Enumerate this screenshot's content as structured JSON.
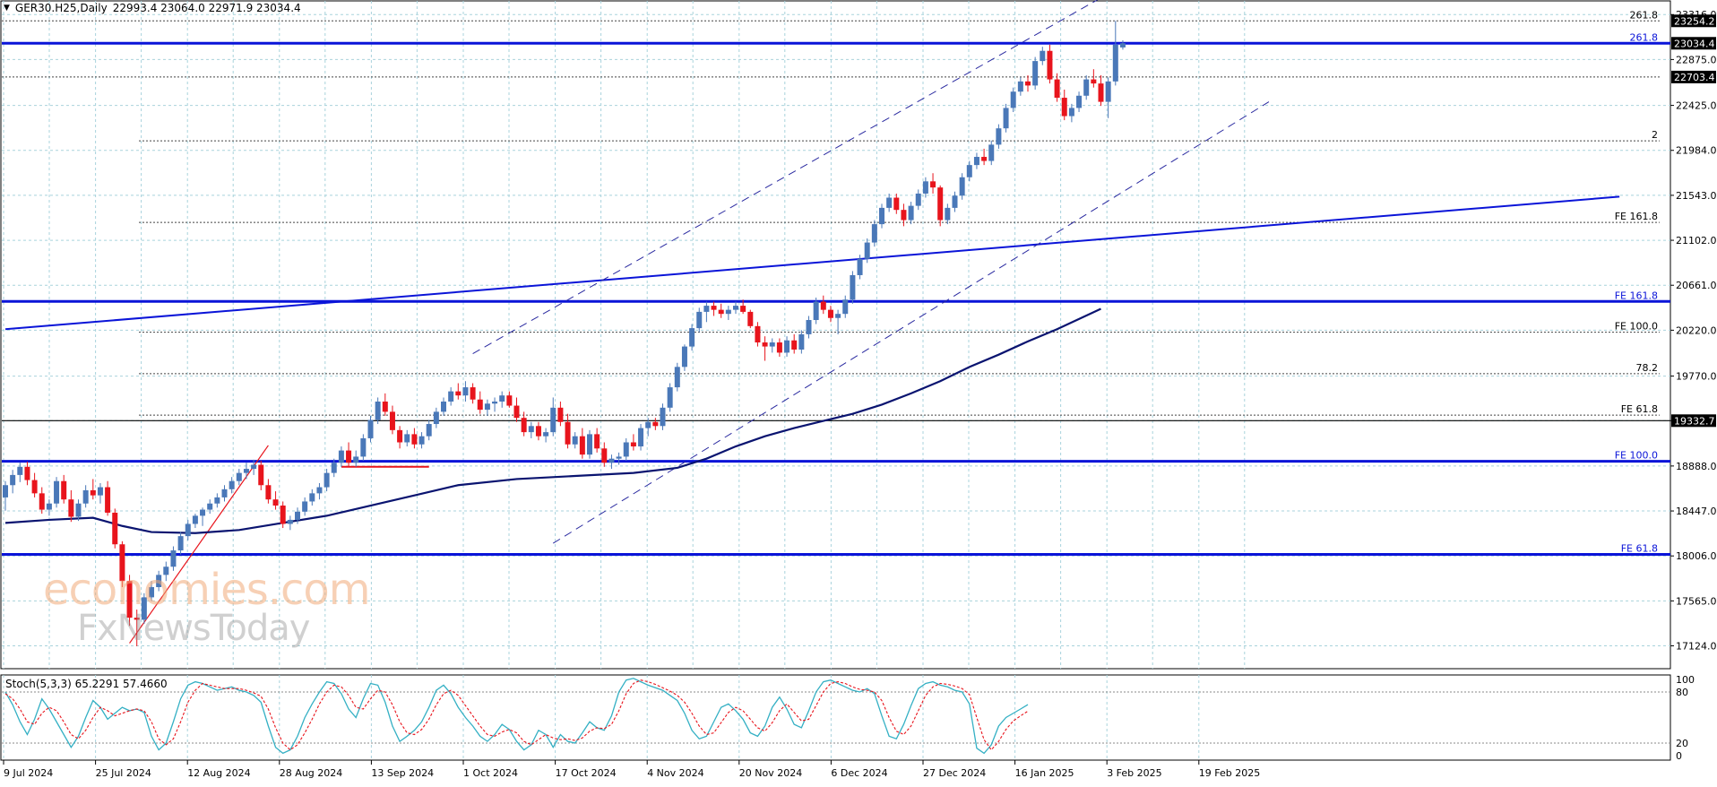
{
  "header": {
    "symbol": "GER30.H25,Daily",
    "ohlc": "22993.4 23064.0 22971.9 23034.4"
  },
  "stoch_label": "Stoch(5,3,3) 65.2291 57.4660",
  "watermark": {
    "line1": "economies.com",
    "line2": "FxNewsToday"
  },
  "colors": {
    "bull": "#4a78b8",
    "bear": "#e8141c",
    "level": "#0a14d8",
    "ma": "#0a1470",
    "stoch_main": "#34b0c4",
    "stoch_signal": "#e8141c"
  },
  "chart_data": {
    "type": "candlestick",
    "ylim": [
      16900,
      23450
    ],
    "price_ticks": [
      "23316.0",
      "22875.0",
      "22425.0",
      "21984.0",
      "21543.0",
      "21102.0",
      "20661.0",
      "20220.0",
      "19770.0",
      "19332.7",
      "18888.0",
      "18447.0",
      "18006.0",
      "17565.0",
      "17124.0"
    ],
    "x_labels": [
      "9 Jul 2024",
      "25 Jul 2024",
      "12 Aug 2024",
      "28 Aug 2024",
      "13 Sep 2024",
      "1 Oct 2024",
      "17 Oct 2024",
      "4 Nov 2024",
      "20 Nov 2024",
      "6 Dec 2024",
      "27 Dec 2024",
      "16 Jan 2025",
      "3 Feb 2025",
      "19 Feb 2025"
    ],
    "price_badges": [
      {
        "text": "23254.2",
        "price": 23254.2
      },
      {
        "text": "23034.4",
        "price": 23034.4
      },
      {
        "text": "22703.4",
        "price": 22703.4
      },
      {
        "text": "19332.7",
        "price": 19332.7
      }
    ],
    "levels": [
      {
        "label": "261.8",
        "price": 23254.2,
        "style": "dotted"
      },
      {
        "label": "261.8",
        "price": 23034.4,
        "style": "thick"
      },
      {
        "label": "",
        "price": 22703.4,
        "style": "dotted"
      },
      {
        "label": "2",
        "price": 22077,
        "style": "dotted"
      },
      {
        "label": "FE 161.8",
        "price": 21277,
        "style": "dotted"
      },
      {
        "label": "FE 161.8",
        "price": 20502,
        "style": "thick"
      },
      {
        "label": "FE 100.0",
        "price": 20200,
        "style": "dotted"
      },
      {
        "label": "78.2",
        "price": 19794,
        "style": "dotted"
      },
      {
        "label": "FE 61.8",
        "price": 19387,
        "style": "dotted"
      },
      {
        "label": "",
        "price": 19332.7,
        "style": "solid-black"
      },
      {
        "label": "FE 100.0",
        "price": 18934,
        "style": "thick"
      },
      {
        "label": "FE 61.8",
        "price": 18021,
        "style": "thick"
      }
    ],
    "candles": [
      [
        18580,
        18740,
        18450,
        18700
      ],
      [
        18700,
        18850,
        18620,
        18800
      ],
      [
        18800,
        18920,
        18730,
        18880
      ],
      [
        18880,
        18930,
        18700,
        18750
      ],
      [
        18750,
        18820,
        18580,
        18620
      ],
      [
        18620,
        18680,
        18420,
        18460
      ],
      [
        18460,
        18560,
        18400,
        18520
      ],
      [
        18520,
        18780,
        18480,
        18740
      ],
      [
        18740,
        18800,
        18520,
        18560
      ],
      [
        18560,
        18650,
        18340,
        18390
      ],
      [
        18390,
        18560,
        18350,
        18520
      ],
      [
        18520,
        18700,
        18480,
        18650
      ],
      [
        18650,
        18760,
        18560,
        18600
      ],
      [
        18600,
        18720,
        18520,
        18680
      ],
      [
        18680,
        18740,
        18400,
        18430
      ],
      [
        18430,
        18470,
        18080,
        18120
      ],
      [
        18120,
        18150,
        17700,
        17760
      ],
      [
        17760,
        17820,
        17320,
        17400
      ],
      [
        17400,
        17480,
        17120,
        17380
      ],
      [
        17380,
        17640,
        17340,
        17600
      ],
      [
        17600,
        17760,
        17560,
        17700
      ],
      [
        17700,
        17860,
        17660,
        17820
      ],
      [
        17820,
        17950,
        17760,
        17900
      ],
      [
        17900,
        18100,
        17860,
        18060
      ],
      [
        18060,
        18240,
        18020,
        18200
      ],
      [
        18200,
        18360,
        18160,
        18320
      ],
      [
        18320,
        18420,
        18280,
        18400
      ],
      [
        18400,
        18480,
        18300,
        18460
      ],
      [
        18460,
        18560,
        18420,
        18520
      ],
      [
        18520,
        18620,
        18480,
        18580
      ],
      [
        18580,
        18700,
        18540,
        18660
      ],
      [
        18660,
        18780,
        18620,
        18740
      ],
      [
        18740,
        18860,
        18700,
        18820
      ],
      [
        18820,
        18920,
        18760,
        18860
      ],
      [
        18860,
        18950,
        18800,
        18900
      ],
      [
        18900,
        18940,
        18650,
        18700
      ],
      [
        18700,
        18760,
        18520,
        18560
      ],
      [
        18560,
        18640,
        18460,
        18500
      ],
      [
        18500,
        18540,
        18280,
        18320
      ],
      [
        18320,
        18400,
        18260,
        18360
      ],
      [
        18360,
        18480,
        18320,
        18440
      ],
      [
        18440,
        18580,
        18400,
        18540
      ],
      [
        18540,
        18660,
        18500,
        18620
      ],
      [
        18620,
        18720,
        18560,
        18680
      ],
      [
        18680,
        18860,
        18640,
        18820
      ],
      [
        18820,
        18960,
        18780,
        18920
      ],
      [
        18920,
        19080,
        18880,
        19040
      ],
      [
        19040,
        19120,
        18880,
        18920
      ],
      [
        18920,
        19040,
        18880,
        18980
      ],
      [
        18980,
        19200,
        18940,
        19160
      ],
      [
        19160,
        19380,
        19120,
        19340
      ],
      [
        19340,
        19560,
        19300,
        19520
      ],
      [
        19520,
        19600,
        19380,
        19420
      ],
      [
        19420,
        19480,
        19200,
        19240
      ],
      [
        19240,
        19280,
        19060,
        19120
      ],
      [
        19120,
        19240,
        19080,
        19200
      ],
      [
        19200,
        19260,
        19060,
        19100
      ],
      [
        19100,
        19220,
        19060,
        19180
      ],
      [
        19180,
        19340,
        19140,
        19300
      ],
      [
        19300,
        19460,
        19260,
        19420
      ],
      [
        19420,
        19560,
        19380,
        19520
      ],
      [
        19520,
        19660,
        19480,
        19620
      ],
      [
        19620,
        19700,
        19540,
        19580
      ],
      [
        19580,
        19720,
        19520,
        19660
      ],
      [
        19660,
        19700,
        19500,
        19540
      ],
      [
        19540,
        19620,
        19400,
        19440
      ],
      [
        19440,
        19540,
        19380,
        19500
      ],
      [
        19500,
        19560,
        19420,
        19520
      ],
      [
        19520,
        19620,
        19460,
        19580
      ],
      [
        19580,
        19620,
        19460,
        19480
      ],
      [
        19480,
        19560,
        19320,
        19360
      ],
      [
        19360,
        19420,
        19180,
        19220
      ],
      [
        19220,
        19320,
        19160,
        19280
      ],
      [
        19280,
        19320,
        19140,
        19180
      ],
      [
        19180,
        19260,
        19120,
        19220
      ],
      [
        19220,
        19560,
        19180,
        19460
      ],
      [
        19460,
        19520,
        19280,
        19320
      ],
      [
        19320,
        19400,
        19060,
        19100
      ],
      [
        19100,
        19220,
        19060,
        19180
      ],
      [
        19180,
        19260,
        18960,
        19000
      ],
      [
        19000,
        19240,
        18960,
        19200
      ],
      [
        19200,
        19260,
        19020,
        19060
      ],
      [
        19060,
        19120,
        18880,
        18920
      ],
      [
        18920,
        19000,
        18860,
        18960
      ],
      [
        18960,
        19020,
        18900,
        18980
      ],
      [
        18980,
        19160,
        18940,
        19120
      ],
      [
        19120,
        19200,
        19040,
        19080
      ],
      [
        19080,
        19300,
        19040,
        19260
      ],
      [
        19260,
        19360,
        19180,
        19320
      ],
      [
        19320,
        19360,
        19240,
        19280
      ],
      [
        19280,
        19500,
        19240,
        19460
      ],
      [
        19460,
        19700,
        19420,
        19660
      ],
      [
        19660,
        19900,
        19620,
        19860
      ],
      [
        19860,
        20080,
        19820,
        20060
      ],
      [
        20060,
        20280,
        20020,
        20240
      ],
      [
        20240,
        20440,
        20200,
        20400
      ],
      [
        20400,
        20500,
        20300,
        20460
      ],
      [
        20460,
        20500,
        20360,
        20420
      ],
      [
        20420,
        20480,
        20340,
        20380
      ],
      [
        20380,
        20460,
        20320,
        20420
      ],
      [
        20420,
        20500,
        20380,
        20460
      ],
      [
        20460,
        20520,
        20380,
        20400
      ],
      [
        20400,
        20420,
        20240,
        20260
      ],
      [
        20260,
        20300,
        20060,
        20100
      ],
      [
        20100,
        20160,
        19920,
        20060
      ],
      [
        20060,
        20140,
        20000,
        20100
      ],
      [
        20100,
        20140,
        19960,
        20000
      ],
      [
        20000,
        20160,
        19960,
        20120
      ],
      [
        20120,
        20180,
        19990,
        20030
      ],
      [
        20030,
        20220,
        19990,
        20180
      ],
      [
        20180,
        20360,
        20140,
        20320
      ],
      [
        20320,
        20540,
        20280,
        20500
      ],
      [
        20500,
        20560,
        20380,
        20420
      ],
      [
        20420,
        20460,
        20300,
        20340
      ],
      [
        20340,
        20420,
        20180,
        20380
      ],
      [
        20380,
        20560,
        20340,
        20520
      ],
      [
        20520,
        20800,
        20480,
        20760
      ],
      [
        20760,
        20960,
        20720,
        20920
      ],
      [
        20920,
        21120,
        20880,
        21080
      ],
      [
        21080,
        21300,
        21040,
        21260
      ],
      [
        21260,
        21460,
        21220,
        21420
      ],
      [
        21420,
        21560,
        21380,
        21520
      ],
      [
        21520,
        21560,
        21360,
        21400
      ],
      [
        21400,
        21460,
        21240,
        21300
      ],
      [
        21300,
        21480,
        21260,
        21440
      ],
      [
        21440,
        21600,
        21400,
        21560
      ],
      [
        21560,
        21720,
        21520,
        21680
      ],
      [
        21680,
        21760,
        21560,
        21620
      ],
      [
        21620,
        21640,
        21240,
        21300
      ],
      [
        21300,
        21460,
        21260,
        21420
      ],
      [
        21420,
        21580,
        21380,
        21540
      ],
      [
        21540,
        21760,
        21500,
        21720
      ],
      [
        21720,
        21880,
        21680,
        21840
      ],
      [
        21840,
        21960,
        21800,
        21920
      ],
      [
        21920,
        22000,
        21840,
        21880
      ],
      [
        21880,
        22080,
        21840,
        22040
      ],
      [
        22040,
        22240,
        22000,
        22200
      ],
      [
        22200,
        22440,
        22160,
        22400
      ],
      [
        22400,
        22600,
        22360,
        22560
      ],
      [
        22560,
        22700,
        22520,
        22660
      ],
      [
        22660,
        22720,
        22560,
        22620
      ],
      [
        22620,
        22900,
        22580,
        22860
      ],
      [
        22860,
        23000,
        22820,
        22960
      ],
      [
        22960,
        23020,
        22640,
        22680
      ],
      [
        22680,
        22740,
        22460,
        22500
      ],
      [
        22500,
        22580,
        22280,
        22320
      ],
      [
        22320,
        22440,
        22260,
        22400
      ],
      [
        22400,
        22560,
        22360,
        22520
      ],
      [
        22520,
        22720,
        22480,
        22680
      ],
      [
        22680,
        22780,
        22600,
        22640
      ],
      [
        22640,
        22720,
        22420,
        22460
      ],
      [
        22460,
        22700,
        22300,
        22660
      ],
      [
        22660,
        23254,
        22620,
        23020
      ],
      [
        22993.4,
        23064.0,
        22971.9,
        23034.4
      ]
    ],
    "moving_average": [
      [
        0,
        18330
      ],
      [
        6,
        18360
      ],
      [
        12,
        18380
      ],
      [
        16,
        18300
      ],
      [
        20,
        18240
      ],
      [
        26,
        18230
      ],
      [
        32,
        18260
      ],
      [
        38,
        18330
      ],
      [
        44,
        18400
      ],
      [
        50,
        18500
      ],
      [
        56,
        18600
      ],
      [
        62,
        18700
      ],
      [
        70,
        18760
      ],
      [
        78,
        18790
      ],
      [
        86,
        18820
      ],
      [
        92,
        18870
      ],
      [
        96,
        18960
      ],
      [
        100,
        19080
      ],
      [
        104,
        19180
      ],
      [
        108,
        19260
      ],
      [
        112,
        19330
      ],
      [
        116,
        19400
      ],
      [
        120,
        19490
      ],
      [
        124,
        19600
      ],
      [
        128,
        19720
      ],
      [
        132,
        19860
      ],
      [
        136,
        19980
      ],
      [
        140,
        20110
      ],
      [
        144,
        20230
      ],
      [
        147,
        20330
      ],
      [
        150,
        20430
      ]
    ],
    "channel_upper": [
      [
        64,
        19990
      ],
      [
        150,
        23480
      ]
    ],
    "channel_lower": [
      [
        75,
        18130
      ],
      [
        173,
        22460
      ]
    ],
    "long_trend": [
      [
        0,
        20230
      ],
      [
        221,
        21530
      ]
    ],
    "red_leg": [
      [
        17,
        17150
      ],
      [
        36,
        19090
      ]
    ],
    "red_support": [
      [
        46,
        18880
      ],
      [
        58,
        18880
      ]
    ],
    "stochastic": {
      "ylim": [
        0,
        100
      ],
      "levels": [
        80,
        20
      ],
      "tick_labels": [
        "100",
        "80",
        "20",
        "0"
      ],
      "main": [
        80,
        65,
        45,
        30,
        48,
        72,
        60,
        45,
        30,
        15,
        28,
        50,
        70,
        62,
        48,
        55,
        62,
        58,
        60,
        56,
        28,
        12,
        20,
        45,
        72,
        88,
        92,
        90,
        86,
        82,
        84,
        86,
        82,
        80,
        76,
        68,
        40,
        15,
        8,
        12,
        28,
        50,
        66,
        80,
        92,
        90,
        78,
        60,
        50,
        72,
        90,
        88,
        68,
        40,
        22,
        28,
        35,
        45,
        62,
        82,
        88,
        78,
        62,
        50,
        40,
        28,
        22,
        30,
        42,
        36,
        22,
        12,
        18,
        35,
        30,
        15,
        30,
        22,
        20,
        32,
        45,
        38,
        35,
        52,
        80,
        94,
        96,
        92,
        88,
        85,
        82,
        76,
        70,
        55,
        35,
        25,
        28,
        45,
        62,
        66,
        58,
        48,
        32,
        28,
        40,
        62,
        74,
        60,
        42,
        38,
        58,
        80,
        92,
        94,
        90,
        86,
        82,
        80,
        84,
        78,
        52,
        28,
        25,
        42,
        64,
        84,
        90,
        92,
        88,
        86,
        82,
        80,
        66,
        14,
        8,
        18,
        40,
        50,
        55,
        60,
        65.2291
      ],
      "signal": [
        78,
        72,
        60,
        45,
        42,
        55,
        62,
        58,
        45,
        30,
        25,
        35,
        50,
        62,
        58,
        52,
        55,
        58,
        60,
        58,
        45,
        25,
        18,
        25,
        45,
        68,
        82,
        90,
        88,
        86,
        84,
        84,
        84,
        82,
        79,
        75,
        60,
        38,
        20,
        12,
        18,
        32,
        48,
        66,
        80,
        88,
        86,
        76,
        62,
        60,
        72,
        82,
        80,
        65,
        45,
        32,
        30,
        36,
        48,
        65,
        78,
        82,
        76,
        64,
        52,
        40,
        30,
        28,
        33,
        36,
        32,
        22,
        18,
        24,
        30,
        26,
        24,
        25,
        23,
        26,
        34,
        38,
        37,
        42,
        58,
        78,
        90,
        94,
        92,
        89,
        85,
        81,
        76,
        68,
        55,
        40,
        30,
        32,
        44,
        56,
        62,
        58,
        48,
        38,
        34,
        44,
        58,
        66,
        56,
        46,
        48,
        64,
        80,
        90,
        92,
        90,
        86,
        83,
        82,
        80,
        70,
        50,
        34,
        30,
        40,
        58,
        76,
        86,
        90,
        89,
        87,
        84,
        77,
        50,
        24,
        12,
        22,
        36,
        46,
        52,
        57.466
      ]
    }
  }
}
